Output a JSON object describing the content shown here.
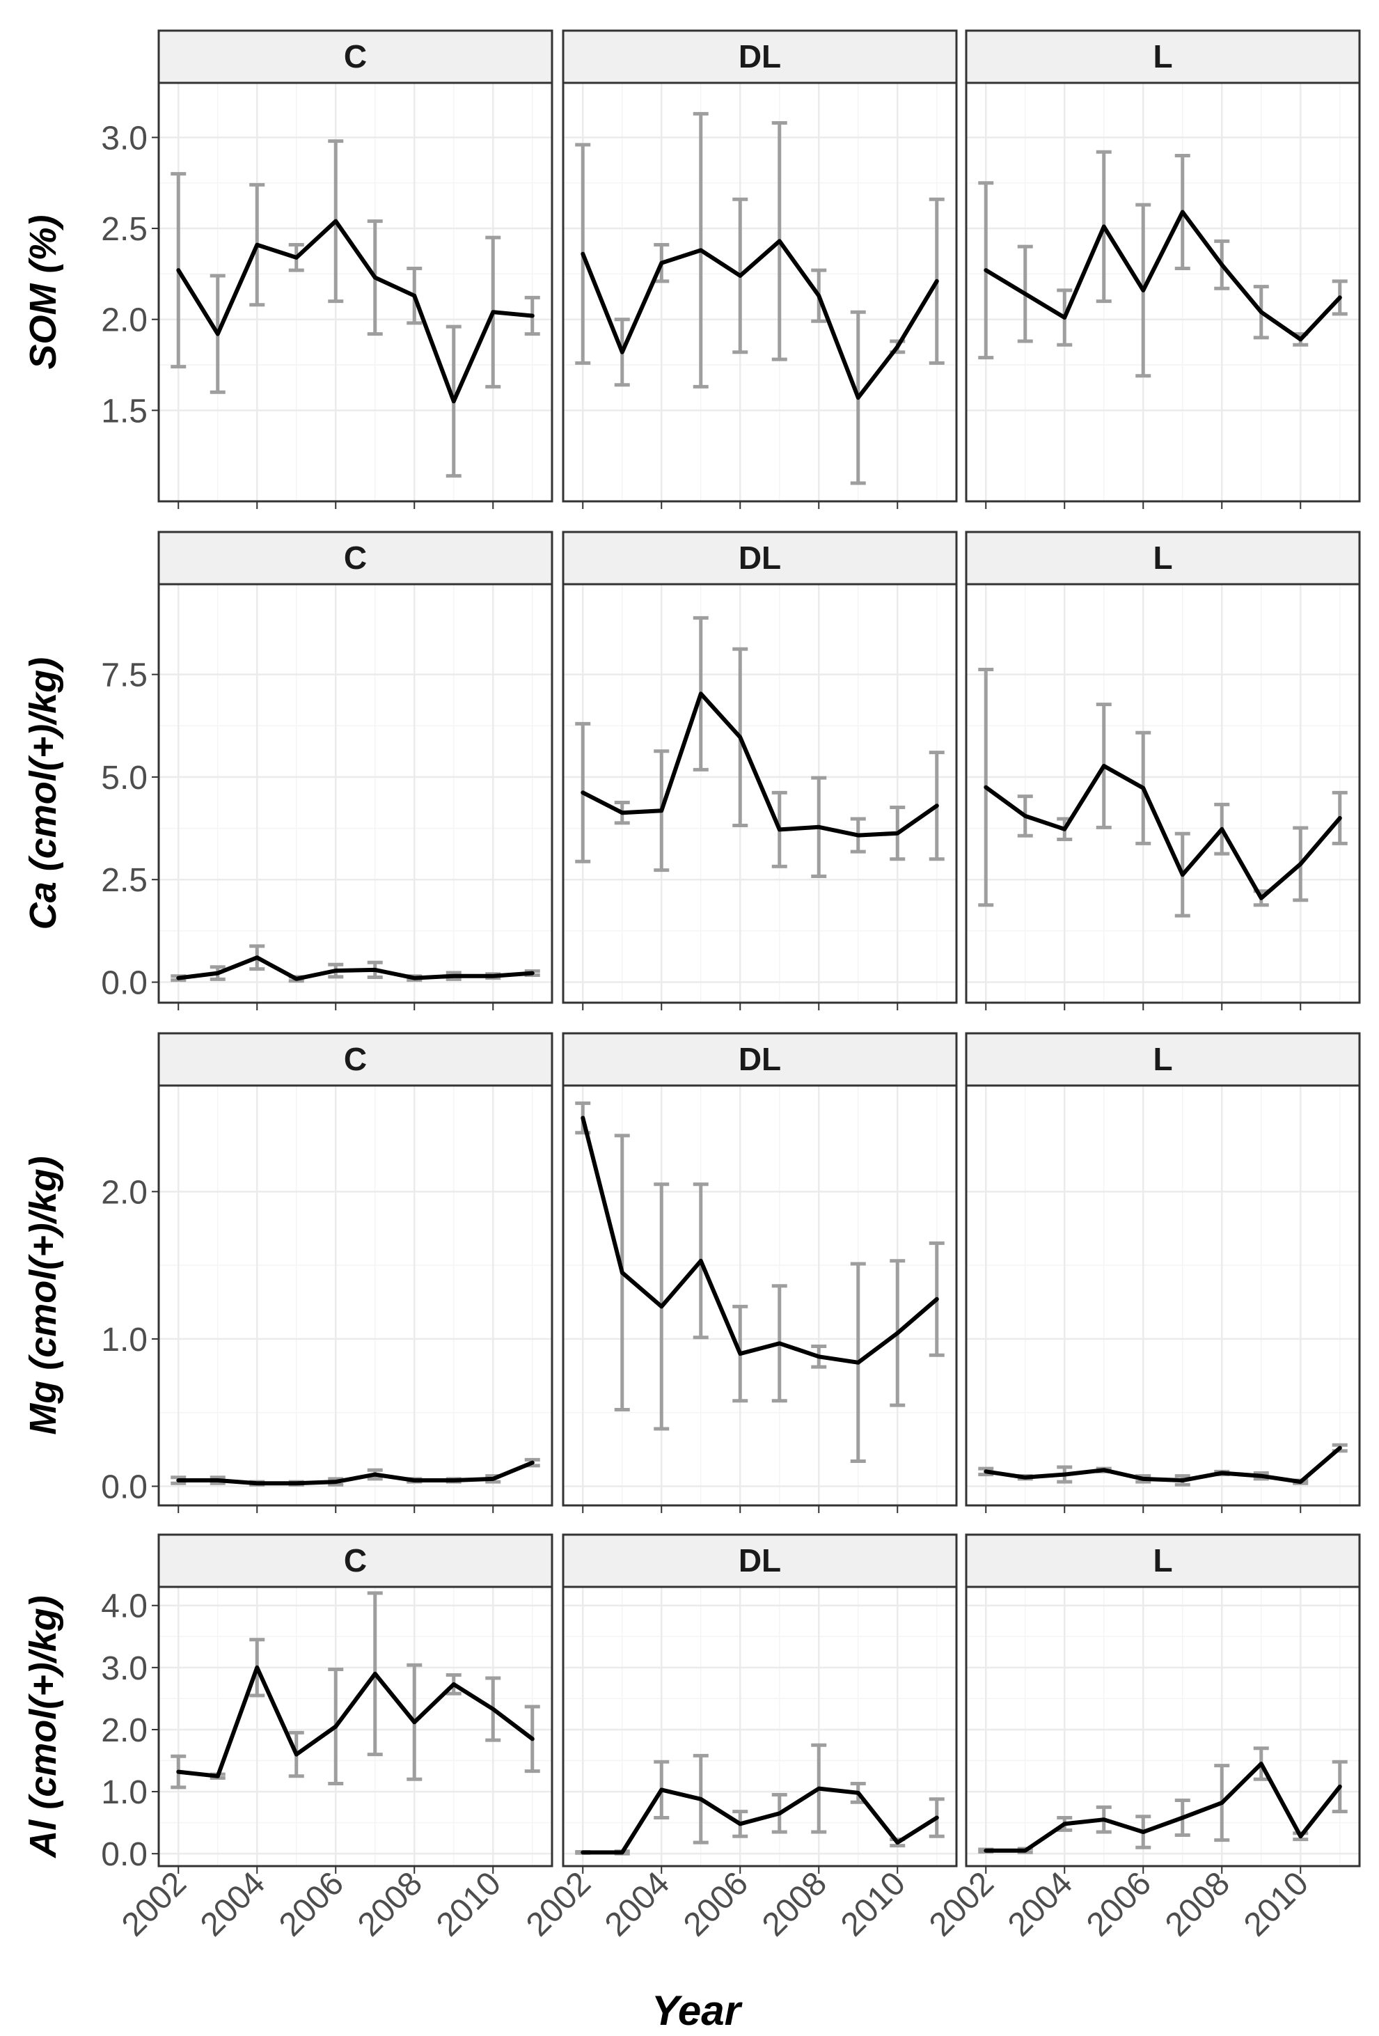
{
  "chart_data": {
    "type": "line",
    "xlabel": "Year",
    "x_ticks": [
      2002,
      2004,
      2006,
      2008,
      2010
    ],
    "xlim": [
      2001.5,
      2011.5
    ],
    "years": [
      2002,
      2003,
      2004,
      2005,
      2006,
      2007,
      2008,
      2009,
      2010,
      2011
    ],
    "panels": [
      "C",
      "DL",
      "L"
    ],
    "colors": {
      "line": "#000000",
      "error_bar": "#9e9e9e",
      "grid": "#ebebeb",
      "strip": "#f0f0f0"
    },
    "rows": [
      {
        "ylabel": "SOM (%)",
        "ylim": [
          1.0,
          3.3
        ],
        "yticks": [
          1.5,
          2.0,
          2.5,
          3.0
        ],
        "ytick_labels": [
          "1.5",
          "2.0",
          "2.5",
          "3.0"
        ],
        "series": [
          {
            "name": "C",
            "values": [
              2.27,
              1.92,
              2.41,
              2.34,
              2.54,
              2.23,
              2.13,
              1.55,
              2.04,
              2.02
            ],
            "err": [
              0.53,
              0.32,
              0.33,
              0.07,
              0.44,
              0.31,
              0.15,
              0.41,
              0.41,
              0.1
            ]
          },
          {
            "name": "DL",
            "values": [
              2.36,
              1.82,
              2.31,
              2.38,
              2.24,
              2.43,
              2.13,
              1.57,
              1.85,
              2.21
            ],
            "err": [
              0.6,
              0.18,
              0.1,
              0.75,
              0.42,
              0.65,
              0.14,
              0.47,
              0.03,
              0.45
            ]
          },
          {
            "name": "L",
            "values": [
              2.27,
              2.14,
              2.01,
              2.51,
              2.16,
              2.59,
              2.3,
              2.04,
              1.89,
              2.12
            ],
            "err": [
              0.48,
              0.26,
              0.15,
              0.41,
              0.47,
              0.31,
              0.13,
              0.14,
              0.03,
              0.09
            ]
          }
        ]
      },
      {
        "ylabel": "Ca (cmol(+)/kg)",
        "ylim": [
          -0.5,
          9.7
        ],
        "yticks": [
          0.0,
          2.5,
          5.0,
          7.5
        ],
        "ytick_labels": [
          "0.0",
          "2.5",
          "5.0",
          "7.5"
        ],
        "series": [
          {
            "name": "C",
            "values": [
              0.1,
              0.22,
              0.6,
              0.08,
              0.28,
              0.3,
              0.1,
              0.15,
              0.15,
              0.22
            ],
            "err": [
              0.05,
              0.15,
              0.28,
              0.05,
              0.15,
              0.18,
              0.05,
              0.08,
              0.05,
              0.05
            ]
          },
          {
            "name": "DL",
            "values": [
              4.62,
              4.13,
              4.18,
              7.03,
              5.97,
              3.72,
              3.78,
              3.58,
              3.63,
              4.3
            ],
            "err": [
              1.68,
              0.25,
              1.45,
              1.85,
              2.15,
              0.9,
              1.2,
              0.4,
              0.63,
              1.3
            ]
          },
          {
            "name": "L",
            "values": [
              4.75,
              4.05,
              3.73,
              5.27,
              4.73,
              2.62,
              3.73,
              2.05,
              2.88,
              4.0
            ],
            "err": [
              2.87,
              0.48,
              0.25,
              1.5,
              1.35,
              1.0,
              0.6,
              0.17,
              0.88,
              0.62
            ]
          }
        ]
      },
      {
        "ylabel": "Mg (cmol(+)/kg)",
        "ylim": [
          -0.13,
          2.72
        ],
        "yticks": [
          0.0,
          1.0,
          2.0
        ],
        "ytick_labels": [
          "0.0",
          "1.0",
          "2.0"
        ],
        "series": [
          {
            "name": "C",
            "values": [
              0.04,
              0.04,
              0.02,
              0.02,
              0.03,
              0.08,
              0.04,
              0.04,
              0.05,
              0.16
            ],
            "err": [
              0.02,
              0.02,
              0.01,
              0.01,
              0.02,
              0.03,
              0.01,
              0.01,
              0.02,
              0.02
            ]
          },
          {
            "name": "DL",
            "values": [
              2.5,
              1.45,
              1.22,
              1.53,
              0.9,
              0.97,
              0.88,
              0.84,
              1.04,
              1.27
            ],
            "err": [
              0.1,
              0.93,
              0.83,
              0.52,
              0.32,
              0.39,
              0.07,
              0.67,
              0.49,
              0.38
            ]
          },
          {
            "name": "L",
            "values": [
              0.1,
              0.06,
              0.08,
              0.11,
              0.05,
              0.04,
              0.09,
              0.07,
              0.03,
              0.26
            ],
            "err": [
              0.02,
              0.01,
              0.05,
              0.01,
              0.02,
              0.03,
              0.01,
              0.02,
              0.01,
              0.02
            ]
          }
        ]
      },
      {
        "ylabel": "Al (cmol(+)/kg)",
        "ylim": [
          -0.2,
          4.3
        ],
        "yticks": [
          0.0,
          1.0,
          2.0,
          3.0,
          4.0
        ],
        "ytick_labels": [
          "0.0",
          "1.0",
          "2.0",
          "3.0",
          "4.0"
        ],
        "series": [
          {
            "name": "C",
            "values": [
              1.32,
              1.25,
              3.0,
              1.6,
              2.05,
              2.9,
              2.12,
              2.73,
              2.33,
              1.85
            ],
            "err": [
              0.25,
              0.03,
              0.45,
              0.35,
              0.92,
              1.3,
              0.92,
              0.15,
              0.5,
              0.52
            ]
          },
          {
            "name": "DL",
            "values": [
              0.02,
              0.02,
              1.03,
              0.88,
              0.48,
              0.65,
              1.05,
              0.98,
              0.18,
              0.58
            ],
            "err": [
              0.01,
              0.02,
              0.45,
              0.7,
              0.2,
              0.3,
              0.7,
              0.15,
              0.05,
              0.3
            ]
          },
          {
            "name": "L",
            "values": [
              0.05,
              0.05,
              0.48,
              0.55,
              0.35,
              0.58,
              0.82,
              1.45,
              0.28,
              1.08
            ],
            "err": [
              0.02,
              0.03,
              0.1,
              0.2,
              0.25,
              0.28,
              0.6,
              0.25,
              0.05,
              0.4
            ]
          }
        ]
      }
    ]
  }
}
